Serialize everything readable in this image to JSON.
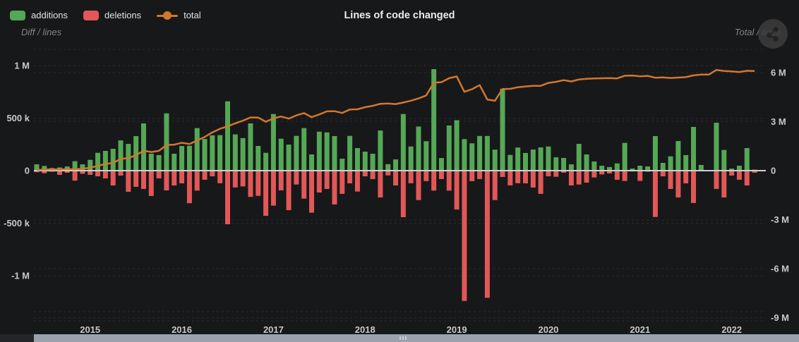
{
  "header": {
    "title": "Lines of code changed",
    "left_axis_caption": "Diff / lines",
    "right_axis_caption": "Total / lines",
    "share_icon": "share-nodes"
  },
  "legend": [
    {
      "label": "additions",
      "marker": "square",
      "color": "#55a855"
    },
    {
      "label": "deletions",
      "marker": "square",
      "color": "#e25757"
    },
    {
      "label": "total",
      "marker": "line-dot",
      "color": "#d2772e"
    }
  ],
  "colors": {
    "background": "#17181a",
    "additions": "#55a855",
    "deletions": "#e25757",
    "total_line": "#d2772e",
    "zero_line": "#ccd0d4",
    "grid": "rgba(255,255,255,0.09)",
    "tick_text": "#c9c9c9",
    "scroll_thumb": "#9aa2ad"
  },
  "chart_data": {
    "type": "bar",
    "title": "Lines of code changed",
    "xlabel": "",
    "ylabel_left": "Diff / lines",
    "ylabel_right": "Total / lines",
    "x": [
      "2014-06",
      "2014-07",
      "2014-08",
      "2014-09",
      "2014-10",
      "2014-11",
      "2014-12",
      "2015-01",
      "2015-02",
      "2015-03",
      "2015-04",
      "2015-05",
      "2015-06",
      "2015-07",
      "2015-08",
      "2015-09",
      "2015-10",
      "2015-11",
      "2015-12",
      "2016-01",
      "2016-02",
      "2016-03",
      "2016-04",
      "2016-05",
      "2016-06",
      "2016-07",
      "2016-08",
      "2016-09",
      "2016-10",
      "2016-11",
      "2016-12",
      "2017-01",
      "2017-02",
      "2017-03",
      "2017-04",
      "2017-05",
      "2017-06",
      "2017-07",
      "2017-08",
      "2017-09",
      "2017-10",
      "2017-11",
      "2017-12",
      "2018-01",
      "2018-02",
      "2018-03",
      "2018-04",
      "2018-05",
      "2018-06",
      "2018-07",
      "2018-08",
      "2018-09",
      "2018-10",
      "2018-11",
      "2018-12",
      "2019-01",
      "2019-02",
      "2019-03",
      "2019-04",
      "2019-05",
      "2019-06",
      "2019-07",
      "2019-08",
      "2019-09",
      "2019-10",
      "2019-11",
      "2019-12",
      "2020-01",
      "2020-02",
      "2020-03",
      "2020-04",
      "2020-05",
      "2020-06",
      "2020-07",
      "2020-08",
      "2020-09",
      "2020-10",
      "2020-11",
      "2020-12",
      "2021-01",
      "2021-02",
      "2021-03",
      "2021-04",
      "2021-05",
      "2021-06",
      "2021-07",
      "2021-08",
      "2021-09",
      "2021-10",
      "2021-11",
      "2021-12",
      "2022-01",
      "2022-02",
      "2022-03",
      "2022-04"
    ],
    "series": [
      {
        "name": "additions",
        "type": "bar",
        "axis": "left",
        "color": "#55a855",
        "values": [
          60000,
          45000,
          25000,
          30000,
          40000,
          90000,
          60000,
          103000,
          170000,
          188000,
          208000,
          288000,
          255000,
          329000,
          450000,
          161000,
          148000,
          545000,
          161000,
          235000,
          237000,
          405000,
          301000,
          336000,
          338000,
          660000,
          345000,
          310000,
          450000,
          235000,
          170000,
          539000,
          304000,
          248000,
          331000,
          405000,
          154000,
          371000,
          364000,
          329000,
          114000,
          331000,
          215000,
          181000,
          161000,
          382000,
          62000,
          107000,
          539000,
          230000,
          420000,
          280000,
          966000,
          120000,
          430000,
          480000,
          300000,
          260000,
          330000,
          330000,
          200000,
          780000,
          150000,
          220000,
          168000,
          201000,
          221000,
          230000,
          127000,
          121000,
          60000,
          255000,
          154000,
          87000,
          47000,
          34000,
          69000,
          264000,
          20000,
          47000,
          40000,
          329000,
          74000,
          136000,
          282000,
          148000,
          416000,
          54000,
          5000,
          456000,
          197000,
          20000,
          47000,
          215000,
          10000
        ]
      },
      {
        "name": "deletions",
        "type": "bar",
        "axis": "left",
        "color": "#e25757",
        "values": [
          -15000,
          -25000,
          -10000,
          -40000,
          -20000,
          -95000,
          -30000,
          -40000,
          -54000,
          -74000,
          -141000,
          -47000,
          -201000,
          -154000,
          -174000,
          -241000,
          -74000,
          -188000,
          -141000,
          -121000,
          -310000,
          -190000,
          -87000,
          -54000,
          -120000,
          -510000,
          -160000,
          -150000,
          -250000,
          -240000,
          -430000,
          -333000,
          -188000,
          -376000,
          -132000,
          -266000,
          -400000,
          -208000,
          -174000,
          -322000,
          -221000,
          -121000,
          -199000,
          -54000,
          -80000,
          -255000,
          -45000,
          -141000,
          -443000,
          -120000,
          -280000,
          -100000,
          -190000,
          -80000,
          -190000,
          -370000,
          -1240000,
          -100000,
          -80000,
          -1210000,
          -280000,
          -60000,
          -140000,
          -120000,
          -121000,
          -161000,
          -221000,
          -54000,
          -58000,
          -20000,
          -141000,
          -132000,
          -114000,
          -65000,
          -36000,
          -27000,
          -87000,
          -98000,
          -8000,
          -98000,
          -10000,
          -441000,
          -54000,
          -174000,
          -255000,
          -121000,
          -308000,
          -7000,
          -5000,
          -174000,
          -255000,
          -47000,
          -87000,
          -141000,
          -20000
        ]
      },
      {
        "name": "total",
        "type": "line",
        "axis": "right",
        "color": "#d2772e",
        "derived": "cumulative_sum(additions + deletions)"
      }
    ],
    "y_left": {
      "ticks": [
        {
          "label": "1 M",
          "value": 1000000
        },
        {
          "label": "500 k",
          "value": 500000
        },
        {
          "label": "0",
          "value": 0
        },
        {
          "label": "-500 k",
          "value": -500000
        },
        {
          "label": "-1 M",
          "value": -1000000
        }
      ]
    },
    "y_right": {
      "ticks": [
        {
          "label": "6 M",
          "value": 6000000
        },
        {
          "label": "3 M",
          "value": 3000000
        },
        {
          "label": "0",
          "value": 0
        },
        {
          "label": "-3 M",
          "value": -3000000
        },
        {
          "label": "-6 M",
          "value": -6000000
        },
        {
          "label": "-9 M",
          "value": -9000000
        }
      ]
    },
    "x_ticks": [
      "2015",
      "2016",
      "2017",
      "2018",
      "2019",
      "2020",
      "2021",
      "2022"
    ],
    "grid": "dashed-horizontal",
    "legend_position": "top-left"
  }
}
